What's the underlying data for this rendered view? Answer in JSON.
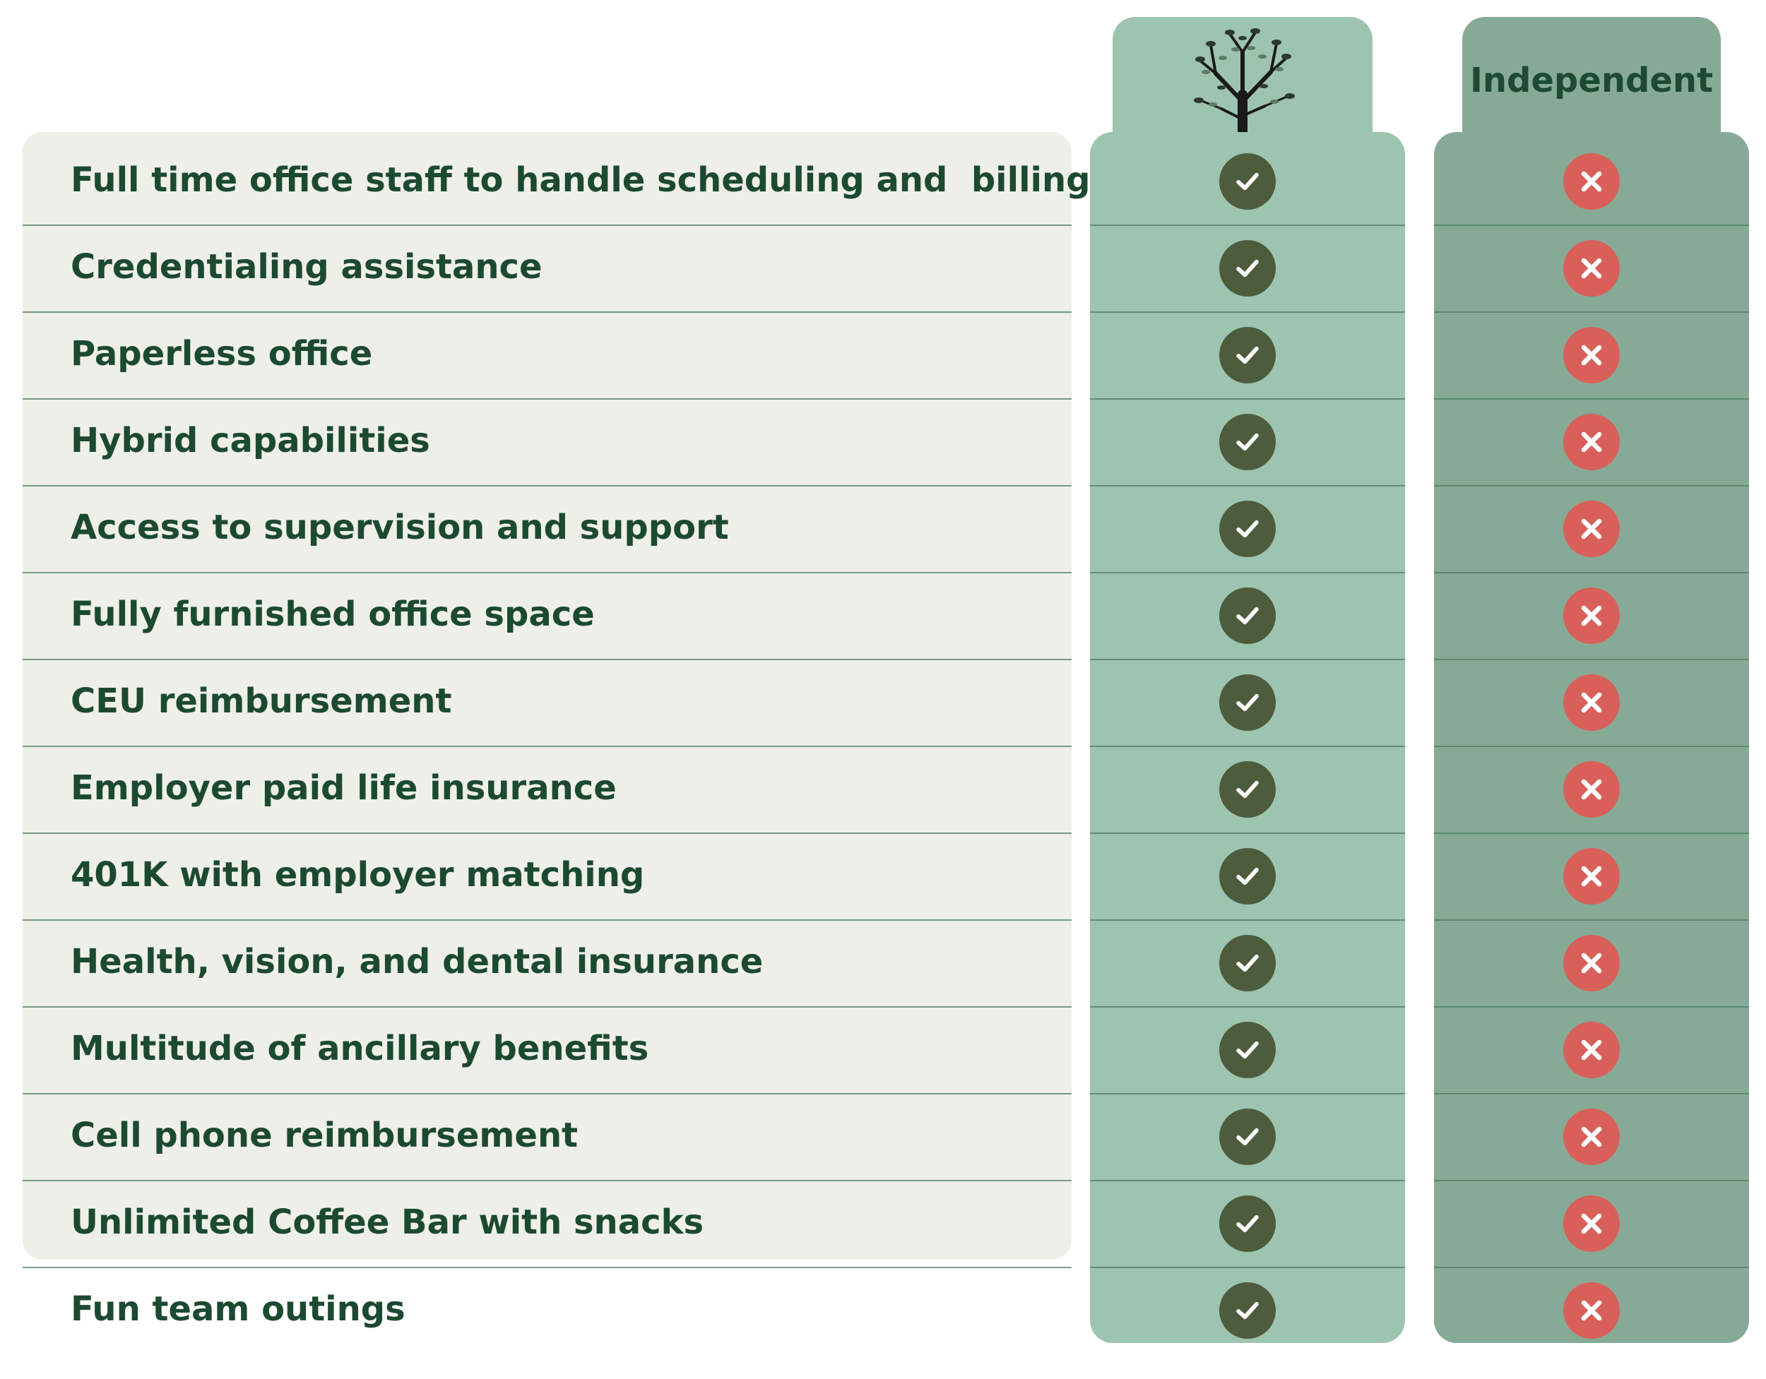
{
  "header": {
    "logo_icon": "tree-icon",
    "independent_label": "Independent"
  },
  "colors": {
    "panel": "#efefe9",
    "ours_column": "#9dc4b0",
    "independent_column": "#87aa97",
    "text": "#1c4a31",
    "check": "#4d5c3d",
    "cross": "#d9605a"
  },
  "rows": [
    {
      "label": "Full time office staff to handle scheduling and  billing",
      "ours": "check",
      "independent": "cross"
    },
    {
      "label": "Credentialing assistance",
      "ours": "check",
      "independent": "cross"
    },
    {
      "label": "Paperless office",
      "ours": "check",
      "independent": "cross"
    },
    {
      "label": "Hybrid capabilities",
      "ours": "check",
      "independent": "cross"
    },
    {
      "label": "Access to supervision and support",
      "ours": "check",
      "independent": "cross"
    },
    {
      "label": "Fully furnished office space",
      "ours": "check",
      "independent": "cross"
    },
    {
      "label": "CEU reimbursement",
      "ours": "check",
      "independent": "cross"
    },
    {
      "label": "Employer paid life insurance",
      "ours": "check",
      "independent": "cross"
    },
    {
      "label": "401K with employer matching",
      "ours": "check",
      "independent": "cross"
    },
    {
      "label": "Health, vision, and dental insurance",
      "ours": "check",
      "independent": "cross"
    },
    {
      "label": "Multitude of ancillary benefits",
      "ours": "check",
      "independent": "cross"
    },
    {
      "label": "Cell phone reimbursement",
      "ours": "check",
      "independent": "cross"
    },
    {
      "label": "Unlimited Coffee Bar with snacks",
      "ours": "check",
      "independent": "cross"
    },
    {
      "label": "Fun team outings",
      "ours": "check",
      "independent": "cross"
    }
  ]
}
